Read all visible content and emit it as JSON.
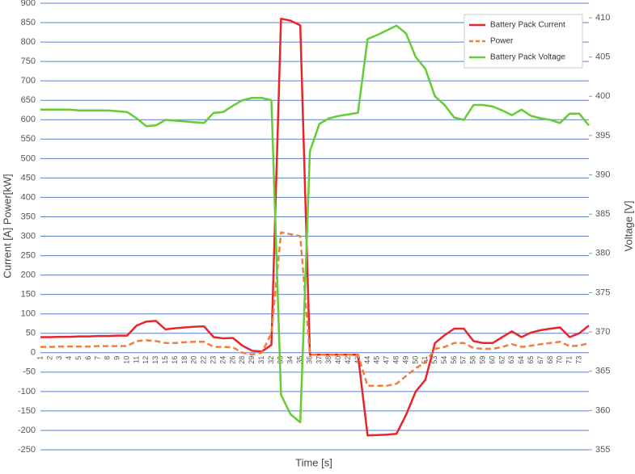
{
  "chart_data": {
    "type": "line",
    "x_label": "Time [s]",
    "y_label": "Current [A]  Power[kW]",
    "y2_label": "Voltage [V]",
    "categories": [
      1,
      2,
      3,
      4,
      5,
      6,
      7,
      8,
      9,
      10,
      11,
      12,
      13,
      15,
      16,
      18,
      20,
      22,
      23,
      24,
      26,
      28,
      29,
      31,
      32,
      33,
      34,
      35,
      36,
      37,
      38,
      40,
      42,
      43,
      44,
      45,
      47,
      48,
      49,
      50,
      51,
      53,
      54,
      56,
      57,
      58,
      59,
      60,
      62,
      63,
      64,
      65,
      67,
      68,
      70,
      71,
      73,
      null
    ],
    "series": [
      {
        "name": "Battery Pack Current",
        "color": "#e8262a",
        "line_style": "solid",
        "values": [
          40,
          40,
          41,
          41,
          42,
          42,
          43,
          43,
          44,
          44,
          70,
          80,
          82,
          60,
          63,
          65,
          67,
          68,
          40,
          37,
          38,
          18,
          5,
          3,
          20,
          860,
          855,
          843,
          -5,
          -5,
          -5,
          -5,
          -5,
          -5,
          -213,
          -212,
          -211,
          -209,
          -160,
          -100,
          -70,
          25,
          45,
          62,
          62,
          30,
          25,
          25,
          40,
          55,
          40,
          52,
          58,
          62,
          65,
          40,
          50,
          70
        ]
      },
      {
        "name": "Power",
        "color": "#f07f3c",
        "line_style": "dashed",
        "values": [
          15,
          15,
          16,
          16,
          16,
          16,
          17,
          17,
          17,
          17,
          30,
          32,
          30,
          25,
          25,
          27,
          28,
          28,
          15,
          15,
          14,
          0,
          -5,
          0,
          50,
          310,
          305,
          300,
          -5,
          -5,
          -5,
          -5,
          -5,
          -5,
          -85,
          -85,
          -85,
          -80,
          -60,
          -40,
          -25,
          10,
          15,
          25,
          25,
          12,
          10,
          10,
          15,
          22,
          15,
          18,
          22,
          25,
          28,
          17,
          18,
          25
        ]
      },
      {
        "name": "Battery Pack Voltage",
        "color": "#66cc33",
        "line_style": "solid",
        "axis": "y2",
        "values": [
          398.3,
          398.3,
          398.3,
          398.3,
          398.2,
          398.2,
          398.2,
          398.2,
          398.1,
          398.0,
          397.2,
          396.2,
          396.3,
          397.0,
          396.9,
          396.8,
          396.7,
          396.6,
          397.9,
          398.0,
          398.8,
          399.5,
          399.8,
          399.8,
          399.5,
          362,
          359.5,
          358.5,
          393,
          396.5,
          397.2,
          397.5,
          397.7,
          397.9,
          407.3,
          407.8,
          408.4,
          409,
          408,
          405,
          403.5,
          400,
          398.9,
          397.3,
          397.0,
          398.9,
          398.9,
          398.7,
          398.2,
          397.6,
          398.3,
          397.5,
          397.2,
          397,
          396.6,
          397.8,
          397.8,
          396.3
        ]
      }
    ],
    "ylim": [
      -250,
      900
    ],
    "yticks": [
      -250,
      -200,
      -150,
      -100,
      -50,
      0,
      50,
      100,
      150,
      200,
      250,
      300,
      350,
      400,
      450,
      500,
      550,
      600,
      650,
      700,
      750,
      800,
      850,
      900
    ],
    "y2lim": [
      355,
      411.85
    ],
    "y2ticks": [
      355,
      360,
      365,
      370,
      375,
      380,
      385,
      390,
      395,
      400,
      405,
      410
    ],
    "grid": true,
    "legend": "top-right"
  }
}
